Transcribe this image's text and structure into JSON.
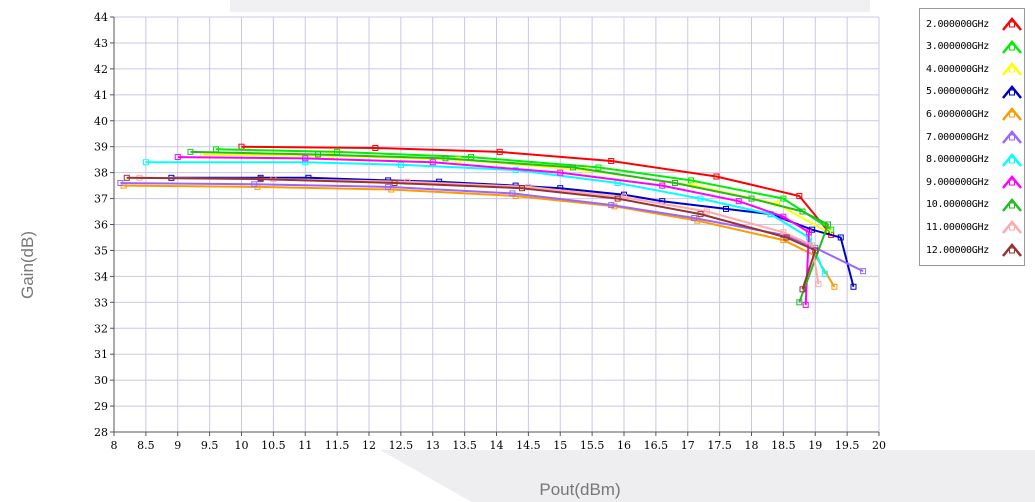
{
  "chart_data": {
    "type": "line",
    "xlabel": "Pout(dBm)",
    "ylabel": "Gain(dB)",
    "xlim": [
      8,
      20
    ],
    "ylim": [
      28,
      44
    ],
    "xticks": [
      "8",
      "8.5",
      "9",
      "9.5",
      "10",
      "10.5",
      "11",
      "11.5",
      "12",
      "12.5",
      "13",
      "13.5",
      "14",
      "14.5",
      "15",
      "15.5",
      "16",
      "16.5",
      "17",
      "17.5",
      "18",
      "18.5",
      "19",
      "19.5",
      "20"
    ],
    "yticks": [
      "28",
      "29",
      "30",
      "31",
      "32",
      "33",
      "34",
      "35",
      "36",
      "37",
      "38",
      "39",
      "40",
      "41",
      "42",
      "43",
      "44"
    ],
    "grid": true,
    "legend_position": "right",
    "series": [
      {
        "name": "2.000000GHz",
        "color": "#ff0000",
        "points": [
          [
            10.0,
            39.0
          ],
          [
            12.1,
            38.95
          ],
          [
            14.05,
            38.8
          ],
          [
            15.8,
            38.45
          ],
          [
            17.45,
            37.85
          ],
          [
            18.75,
            37.1
          ],
          [
            19.25,
            35.6
          ]
        ]
      },
      {
        "name": "3.000000GHz",
        "color": "#00ee00",
        "points": [
          [
            9.6,
            38.9
          ],
          [
            11.5,
            38.8
          ],
          [
            13.6,
            38.6
          ],
          [
            15.6,
            38.2
          ],
          [
            17.05,
            37.7
          ],
          [
            18.5,
            37.0
          ],
          [
            19.25,
            35.8
          ]
        ]
      },
      {
        "name": "4.000000GHz",
        "color": "#ffff00",
        "points": [
          [
            9.4,
            38.7
          ],
          [
            11.4,
            38.65
          ],
          [
            13.4,
            38.5
          ],
          [
            15.4,
            38.1
          ],
          [
            17.1,
            37.5
          ],
          [
            18.4,
            36.8
          ],
          [
            19.2,
            35.7
          ]
        ]
      },
      {
        "name": "5.000000GHz",
        "color": "#0000cc",
        "points": [
          [
            8.9,
            37.8
          ],
          [
            10.3,
            37.8
          ],
          [
            11.05,
            37.8
          ],
          [
            12.3,
            37.7
          ],
          [
            13.1,
            37.65
          ],
          [
            14.3,
            37.5
          ],
          [
            15.0,
            37.4
          ],
          [
            16.0,
            37.15
          ],
          [
            16.6,
            36.9
          ],
          [
            17.6,
            36.6
          ],
          [
            18.3,
            36.4
          ],
          [
            18.95,
            35.8
          ],
          [
            19.4,
            35.5
          ],
          [
            19.6,
            33.6
          ]
        ]
      },
      {
        "name": "6.000000GHz",
        "color": "#ff9900",
        "points": [
          [
            8.15,
            37.5
          ],
          [
            10.25,
            37.45
          ],
          [
            12.35,
            37.35
          ],
          [
            14.3,
            37.1
          ],
          [
            15.85,
            36.7
          ],
          [
            17.15,
            36.15
          ],
          [
            18.5,
            35.4
          ],
          [
            19.0,
            34.8
          ],
          [
            19.3,
            33.6
          ]
        ]
      },
      {
        "name": "7.000000GHz",
        "color": "#9966ff",
        "points": [
          [
            8.1,
            37.6
          ],
          [
            10.2,
            37.55
          ],
          [
            12.3,
            37.45
          ],
          [
            14.25,
            37.2
          ],
          [
            15.8,
            36.75
          ],
          [
            17.1,
            36.25
          ],
          [
            18.5,
            35.6
          ],
          [
            19.0,
            35.1
          ],
          [
            19.75,
            34.2
          ]
        ]
      },
      {
        "name": "8.000000GHz",
        "color": "#00ffff",
        "points": [
          [
            8.5,
            38.4
          ],
          [
            11.0,
            38.4
          ],
          [
            12.5,
            38.3
          ],
          [
            14.3,
            38.1
          ],
          [
            15.9,
            37.6
          ],
          [
            17.2,
            37.0
          ],
          [
            18.3,
            36.4
          ],
          [
            18.9,
            35.5
          ],
          [
            19.15,
            34.1
          ]
        ]
      },
      {
        "name": "9.000000GHz",
        "color": "#ff00ff",
        "points": [
          [
            9.0,
            38.6
          ],
          [
            11.0,
            38.55
          ],
          [
            13.0,
            38.4
          ],
          [
            15.0,
            38.0
          ],
          [
            16.6,
            37.5
          ],
          [
            17.8,
            36.9
          ],
          [
            18.5,
            36.3
          ],
          [
            18.9,
            35.7
          ],
          [
            18.85,
            32.9
          ]
        ]
      },
      {
        "name": "10.00000GHz",
        "color": "#22bb22",
        "points": [
          [
            9.2,
            38.8
          ],
          [
            11.2,
            38.7
          ],
          [
            13.2,
            38.55
          ],
          [
            15.2,
            38.2
          ],
          [
            16.8,
            37.6
          ],
          [
            18.0,
            37.0
          ],
          [
            18.8,
            36.5
          ],
          [
            19.2,
            36.0
          ],
          [
            18.75,
            33.0
          ]
        ]
      },
      {
        "name": "11.00000GHz",
        "color": "#ffaaaa",
        "points": [
          [
            8.4,
            37.8
          ],
          [
            10.5,
            37.75
          ],
          [
            12.6,
            37.65
          ],
          [
            14.5,
            37.45
          ],
          [
            16.0,
            37.05
          ],
          [
            17.3,
            36.5
          ],
          [
            18.5,
            35.7
          ],
          [
            18.95,
            35.2
          ],
          [
            19.05,
            33.7
          ]
        ]
      },
      {
        "name": "12.00000GHz",
        "color": "#993333",
        "points": [
          [
            8.2,
            37.8
          ],
          [
            10.3,
            37.75
          ],
          [
            12.4,
            37.6
          ],
          [
            14.4,
            37.4
          ],
          [
            15.9,
            37.0
          ],
          [
            17.2,
            36.4
          ],
          [
            18.55,
            35.5
          ],
          [
            19.0,
            35.0
          ],
          [
            18.8,
            33.5
          ]
        ]
      }
    ]
  }
}
